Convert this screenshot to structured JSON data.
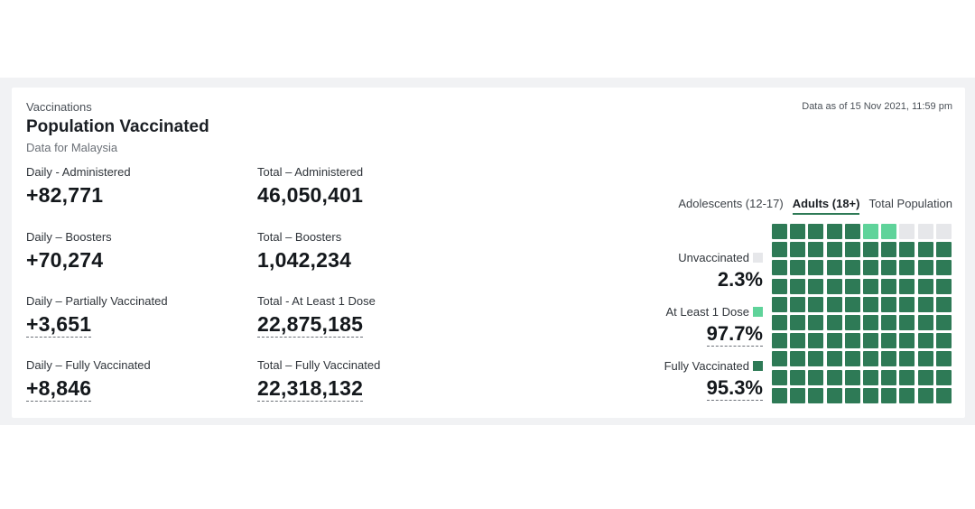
{
  "header": {
    "eyebrow": "Vaccinations",
    "title": "Population Vaccinated",
    "subtitle": "Data for Malaysia",
    "as_of": "Data as of 15 Nov 2021, 11:59 pm"
  },
  "stats": [
    {
      "label": "Daily - Administered",
      "value": "+82,771",
      "dotted": false
    },
    {
      "label": "Total – Administered",
      "value": "46,050,401",
      "dotted": false
    },
    {
      "label": "Daily – Boosters",
      "value": "+70,274",
      "dotted": false
    },
    {
      "label": "Total – Boosters",
      "value": "1,042,234",
      "dotted": false
    },
    {
      "label": "Daily – Partially Vaccinated",
      "value": "+3,651",
      "dotted": true
    },
    {
      "label": "Total - At Least 1 Dose",
      "value": "22,875,185",
      "dotted": true
    },
    {
      "label": "Daily – Fully Vaccinated",
      "value": "+8,846",
      "dotted": true
    },
    {
      "label": "Total – Fully Vaccinated",
      "value": "22,318,132",
      "dotted": true
    }
  ],
  "tabs": [
    {
      "label": "Adolescents (12-17)",
      "active": false
    },
    {
      "label": "Adults (18+)",
      "active": true
    },
    {
      "label": "Total Population",
      "active": false
    }
  ],
  "legend": [
    {
      "label": "Unvaccinated",
      "value": "2.3%",
      "color": "#e6e7ea",
      "dotted": false
    },
    {
      "label": "At Least 1 Dose",
      "value": "97.7%",
      "color": "#5fd39a",
      "dotted": true
    },
    {
      "label": "Fully Vaccinated",
      "value": "95.3%",
      "color": "#2e7a56",
      "dotted": true
    }
  ],
  "chart_data": {
    "type": "waffle",
    "grid": {
      "rows": 10,
      "cols": 10
    },
    "series": [
      {
        "name": "Fully Vaccinated",
        "percent": 95.3,
        "cells": 95,
        "color": "#2e7a56"
      },
      {
        "name": "At Least 1 Dose",
        "percent": 97.7,
        "cells": 2,
        "color": "#5fd39a"
      },
      {
        "name": "Unvaccinated",
        "percent": 2.3,
        "cells": 3,
        "color": "#e6e7ea"
      }
    ]
  }
}
